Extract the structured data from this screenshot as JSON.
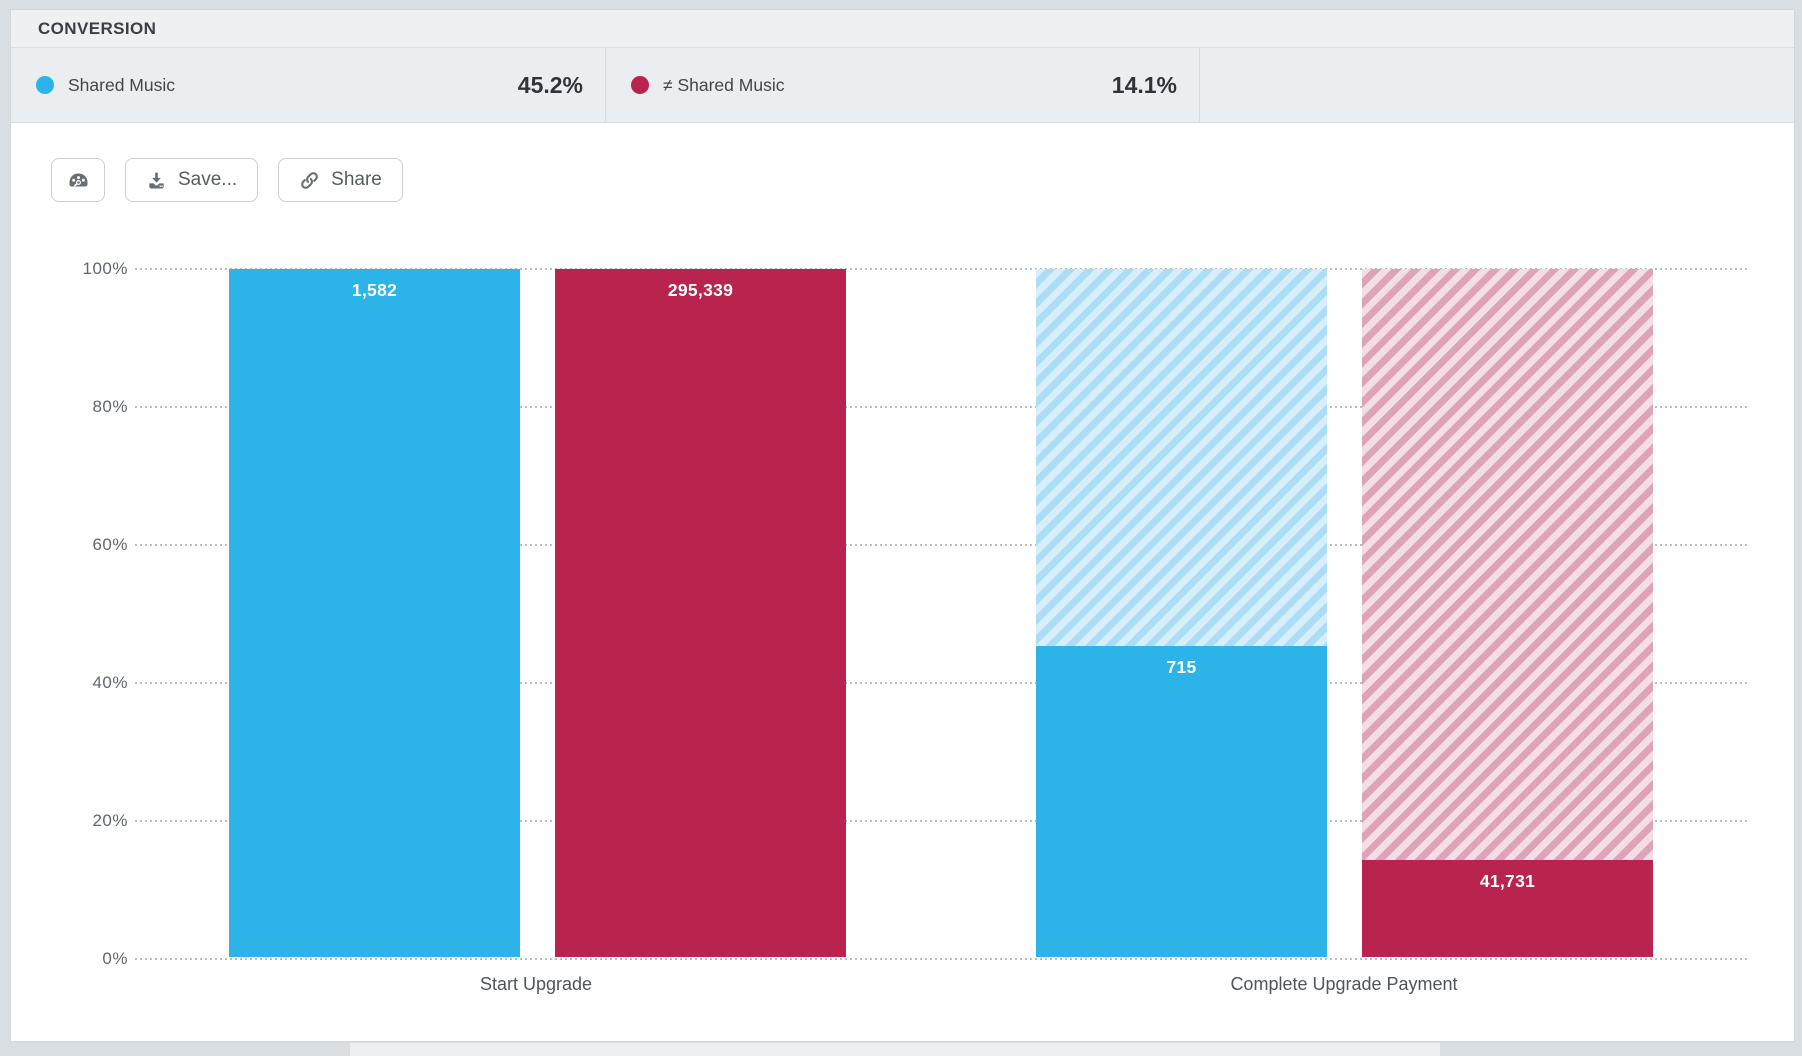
{
  "header": {
    "title": "CONVERSION"
  },
  "legend": {
    "items": [
      {
        "label": "Shared Music",
        "value": "45.2%",
        "color": "#2cb3e8",
        "icon": "blue-dot-icon"
      },
      {
        "label": "≠ Shared Music",
        "value": "14.1%",
        "color": "#b9244e",
        "icon": "red-dot-icon"
      }
    ]
  },
  "toolbar": {
    "chart_type_icon": "gauge-icon",
    "save_label": "Save...",
    "save_icon": "download-icon",
    "share_label": "Share",
    "share_icon": "link-icon"
  },
  "chart_data": {
    "type": "bar",
    "subtype": "funnel-conversion-grouped",
    "categories": [
      "Start Upgrade",
      "Complete Upgrade Payment"
    ],
    "yticks": [
      "100%",
      "80%",
      "60%",
      "40%",
      "20%",
      "0%"
    ],
    "ylim": [
      0,
      100
    ],
    "grid": "horizontal-dotted",
    "legend_position": "top",
    "series": [
      {
        "name": "Shared Music",
        "color": "#2cb3e8",
        "dropoff_base": "#d7eefb",
        "dropoff_stripe": "#abddf5",
        "percents": [
          100,
          45.2
        ],
        "counts": [
          1582,
          715
        ],
        "counts_formatted": [
          "1,582",
          "715"
        ],
        "conversion": "45.2%"
      },
      {
        "name": "≠ Shared Music",
        "color": "#b9244e",
        "dropoff_base": "#f2dee4",
        "dropoff_stripe": "#dfa3b8",
        "percents": [
          100,
          14.1
        ],
        "counts": [
          295339,
          41731
        ],
        "counts_formatted": [
          "295,339",
          "41,731"
        ],
        "conversion": "14.1%"
      }
    ]
  }
}
